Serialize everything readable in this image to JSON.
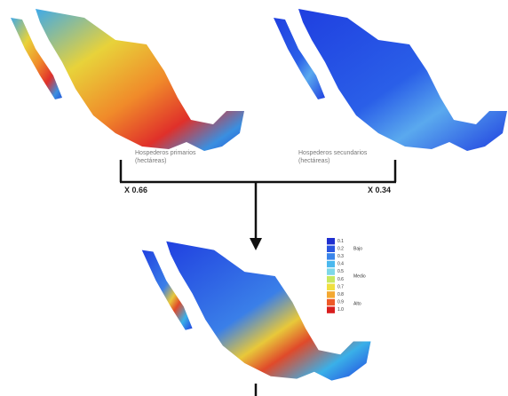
{
  "maps": [
    {
      "label": "Hospederos primarios\n(hectáreas)",
      "weight": "X 0.66"
    },
    {
      "label": "Hospederos secundarios\n(hectáreas)",
      "weight": "X 0.34"
    }
  ],
  "legend": {
    "items": [
      "0.1",
      "0.2",
      "0.3",
      "0.4",
      "0.5",
      "0.6",
      "0.7",
      "0.8",
      "0.9",
      "1.0"
    ],
    "levels": [
      "Bajo",
      "Medio",
      "Alto"
    ]
  }
}
